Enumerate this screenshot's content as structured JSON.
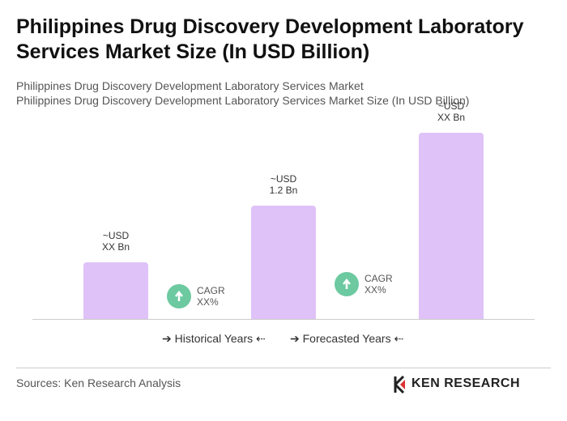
{
  "chart_data": {
    "type": "bar",
    "title": "Philippines Drug Discovery Development Laboratory Services Market Size (In USD Billion)",
    "subtitles": [
      "Philippines Drug Discovery Development Laboratory Services Market",
      "Philippines Drug Discovery Development Laboratory Services Market Size (In USD Billion)"
    ],
    "categories": [
      null,
      null,
      null
    ],
    "values": [
      0.6,
      1.2,
      1.97
    ],
    "value_labels": [
      "~USD\nXX Bn",
      "~USD\n1.2 Bn",
      "~USD\nXX Bn"
    ],
    "color": "#dfc2f8",
    "annotations": [
      "CAGR\nXX%",
      "CAGR\nXX%"
    ],
    "annotation_color": "#6cc9a0",
    "periods": [
      "Historical Years",
      "Forecasted Years"
    ],
    "source": "Sources: Ken Research Analysis",
    "logo": "KEN RESEARCH"
  }
}
